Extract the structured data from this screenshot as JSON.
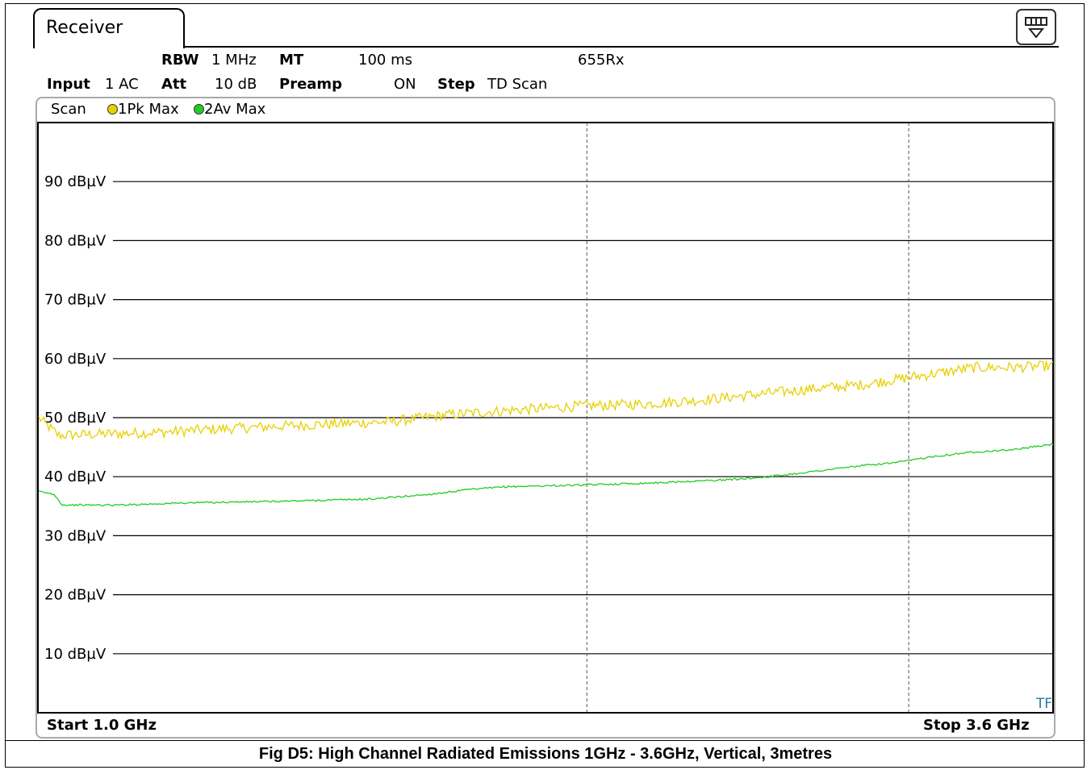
{
  "window": {
    "tab_title": "Receiver"
  },
  "settings": {
    "rbw_label": "RBW",
    "rbw_value": "1 MHz",
    "mt_label": "MT",
    "mt_value": "100 ms",
    "device": "655Rx",
    "input_label": "Input",
    "input_value": "1 AC",
    "att_label": "Att",
    "att_value": "10 dB",
    "preamp_label": "Preamp",
    "preamp_value": "ON",
    "step_label": "Step",
    "step_value": "TD Scan"
  },
  "legend": {
    "scan_label": "Scan",
    "trace1": "1Pk Max",
    "trace1_color": "#e8d000",
    "trace2": "2Av Max",
    "trace2_color": "#22cc22"
  },
  "footer": {
    "start": "Start 1.0 GHz",
    "stop": "Stop 3.6 GHz",
    "corner": "TF"
  },
  "caption": "Fig D5: High Channel Radiated Emissions 1GHz - 3.6GHz, Vertical, 3metres",
  "chart_data": {
    "type": "line",
    "xlim": [
      1.0,
      3.6
    ],
    "ylim": [
      0,
      100
    ],
    "y_ticks": [
      {
        "value": 90,
        "label": "90 dBµV"
      },
      {
        "value": 80,
        "label": "80 dBµV"
      },
      {
        "value": 70,
        "label": "70 dBµV"
      },
      {
        "value": 60,
        "label": "60 dBµV"
      },
      {
        "value": 50,
        "label": "50 dBµV"
      },
      {
        "value": 40,
        "label": "40 dBµV"
      },
      {
        "value": 30,
        "label": "30 dBµV"
      },
      {
        "value": 20,
        "label": "20 dBµV"
      },
      {
        "value": 10,
        "label": "10 dBµV"
      }
    ],
    "vertical_markers": [
      2.405,
      3.23
    ],
    "series": [
      {
        "name": "1Pk Max",
        "color": "#e8d000",
        "x": [
          1.0,
          1.05,
          1.15,
          1.3,
          1.5,
          1.7,
          1.9,
          2.05,
          2.2,
          2.4,
          2.55,
          2.7,
          2.85,
          3.0,
          3.1,
          3.2,
          3.3,
          3.4,
          3.5,
          3.6
        ],
        "y": [
          50.0,
          47.0,
          47.2,
          47.5,
          48.2,
          48.8,
          49.3,
          50.5,
          51.2,
          52.0,
          52.3,
          53.0,
          54.0,
          55.0,
          55.5,
          56.5,
          57.5,
          58.5,
          58.5,
          58.8
        ]
      },
      {
        "name": "2Av Max",
        "color": "#22cc22",
        "x": [
          1.0,
          1.04,
          1.06,
          1.2,
          1.4,
          1.6,
          1.85,
          2.0,
          2.1,
          2.2,
          2.4,
          2.6,
          2.8,
          2.9,
          3.0,
          3.1,
          3.2,
          3.3,
          3.4,
          3.5,
          3.6
        ],
        "y": [
          37.5,
          37.0,
          35.2,
          35.2,
          35.6,
          35.8,
          36.2,
          37.0,
          37.8,
          38.3,
          38.6,
          39.0,
          39.6,
          40.2,
          41.0,
          41.8,
          42.4,
          43.5,
          44.2,
          44.6,
          45.5
        ]
      }
    ]
  }
}
